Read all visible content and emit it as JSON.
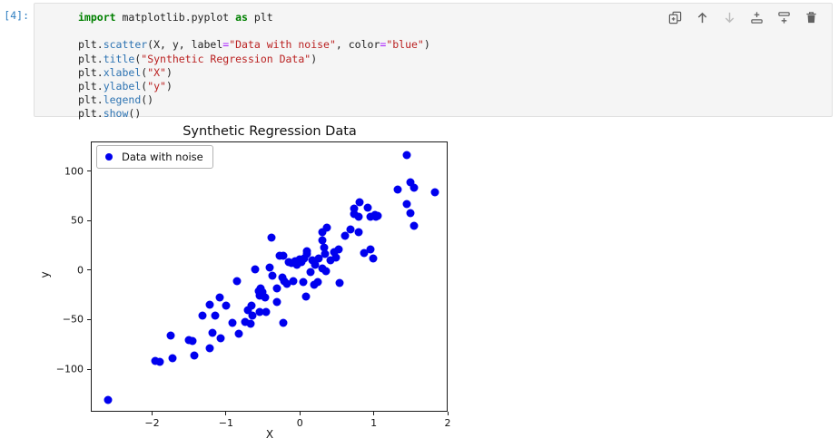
{
  "notebook": {
    "cell": {
      "prompt": "[4]:",
      "code_lines": [
        {
          "tokens": [
            {
              "t": "import",
              "c": "kw"
            },
            {
              "t": " matplotlib.pyplot ",
              "c": "pl"
            },
            {
              "t": "as",
              "c": "kw"
            },
            {
              "t": " plt",
              "c": "pl"
            }
          ]
        },
        {
          "tokens": []
        },
        {
          "tokens": [
            {
              "t": "plt.",
              "c": "pl"
            },
            {
              "t": "scatter",
              "c": "fn"
            },
            {
              "t": "(X, y, label",
              "c": "pl"
            },
            {
              "t": "=",
              "c": "op"
            },
            {
              "t": "\"Data with noise\"",
              "c": "str"
            },
            {
              "t": ", color",
              "c": "pl"
            },
            {
              "t": "=",
              "c": "op"
            },
            {
              "t": "\"blue\"",
              "c": "str"
            },
            {
              "t": ")",
              "c": "pl"
            }
          ]
        },
        {
          "tokens": [
            {
              "t": "plt.",
              "c": "pl"
            },
            {
              "t": "title",
              "c": "fn"
            },
            {
              "t": "(",
              "c": "pl"
            },
            {
              "t": "\"Synthetic Regression Data\"",
              "c": "str"
            },
            {
              "t": ")",
              "c": "pl"
            }
          ]
        },
        {
          "tokens": [
            {
              "t": "plt.",
              "c": "pl"
            },
            {
              "t": "xlabel",
              "c": "fn"
            },
            {
              "t": "(",
              "c": "pl"
            },
            {
              "t": "\"X\"",
              "c": "str"
            },
            {
              "t": ")",
              "c": "pl"
            }
          ]
        },
        {
          "tokens": [
            {
              "t": "plt.",
              "c": "pl"
            },
            {
              "t": "ylabel",
              "c": "fn"
            },
            {
              "t": "(",
              "c": "pl"
            },
            {
              "t": "\"y\"",
              "c": "str"
            },
            {
              "t": ")",
              "c": "pl"
            }
          ]
        },
        {
          "tokens": [
            {
              "t": "plt.",
              "c": "pl"
            },
            {
              "t": "legend",
              "c": "fn"
            },
            {
              "t": "()",
              "c": "pl"
            }
          ]
        },
        {
          "tokens": [
            {
              "t": "plt.",
              "c": "pl"
            },
            {
              "t": "show",
              "c": "fn"
            },
            {
              "t": "()",
              "c": "pl"
            }
          ]
        }
      ],
      "toolbar": [
        {
          "name": "duplicate-cell",
          "icon": "duplicate-icon",
          "disabled": false
        },
        {
          "name": "move-cell-up",
          "icon": "arrow-up-icon",
          "disabled": false
        },
        {
          "name": "move-cell-down",
          "icon": "arrow-down-icon",
          "disabled": true
        },
        {
          "name": "insert-cell-above",
          "icon": "insert-above-icon",
          "disabled": false
        },
        {
          "name": "insert-cell-below",
          "icon": "insert-below-icon",
          "disabled": false
        },
        {
          "name": "delete-cell",
          "icon": "trash-icon",
          "disabled": false
        }
      ]
    }
  },
  "colors": {
    "marker_blue": "#0000ee",
    "prompt_blue": "#307fc1",
    "keyword_green": "#008000",
    "string_red": "#ba2121",
    "operator_purple": "#aa22ff",
    "function_blue": "#2d73b2",
    "icon_grey": "#616161",
    "icon_disabled": "#bdbdbd",
    "cell_bg": "#f5f5f5"
  },
  "chart_data": {
    "type": "scatter",
    "title": "Synthetic Regression Data",
    "xlabel": "X",
    "ylabel": "y",
    "legend": {
      "label": "Data with noise",
      "position": "upper left"
    },
    "marker_color": "#0000ee",
    "grid": false,
    "xlim": [
      -2.83,
      2.0
    ],
    "ylim": [
      -143,
      130
    ],
    "xticks": [
      -2,
      -1,
      0,
      1,
      2
    ],
    "yticks": [
      -100,
      -50,
      0,
      50,
      100
    ],
    "series": [
      {
        "name": "Data with noise",
        "points": [
          [
            -2.6,
            -131
          ],
          [
            -1.96,
            -92
          ],
          [
            -1.9,
            -93
          ],
          [
            -1.75,
            -66
          ],
          [
            -1.73,
            -89
          ],
          [
            -1.5,
            -71
          ],
          [
            -1.45,
            -72
          ],
          [
            -1.43,
            -86
          ],
          [
            -1.32,
            -46
          ],
          [
            -1.22,
            -35
          ],
          [
            -1.22,
            -79
          ],
          [
            -1.18,
            -63
          ],
          [
            -1.15,
            -46
          ],
          [
            -1.08,
            -28
          ],
          [
            -1.07,
            -69
          ],
          [
            -1.0,
            -36
          ],
          [
            -0.91,
            -53
          ],
          [
            -0.85,
            -11
          ],
          [
            -0.83,
            -64
          ],
          [
            -0.74,
            -52
          ],
          [
            -0.7,
            -40
          ],
          [
            -0.67,
            -54
          ],
          [
            -0.66,
            -36
          ],
          [
            -0.64,
            -46
          ],
          [
            -0.6,
            1
          ],
          [
            -0.56,
            -21
          ],
          [
            -0.55,
            -26
          ],
          [
            -0.53,
            -18
          ],
          [
            -0.51,
            -22
          ],
          [
            -0.54,
            -42
          ],
          [
            -0.47,
            -28
          ],
          [
            -0.46,
            -42
          ],
          [
            -0.41,
            3
          ],
          [
            -0.39,
            33
          ],
          [
            -0.37,
            -6
          ],
          [
            -0.31,
            -18
          ],
          [
            -0.31,
            -32
          ],
          [
            -0.27,
            15
          ],
          [
            -0.24,
            -7
          ],
          [
            -0.22,
            15
          ],
          [
            -0.21,
            -11
          ],
          [
            -0.23,
            -53
          ],
          [
            -0.17,
            -14
          ],
          [
            -0.15,
            8
          ],
          [
            -0.11,
            7
          ],
          [
            -0.09,
            -11
          ],
          [
            -0.06,
            9
          ],
          [
            -0.04,
            5
          ],
          [
            0.0,
            11
          ],
          [
            0.02,
            8
          ],
          [
            0.04,
            -12
          ],
          [
            0.06,
            12
          ],
          [
            0.08,
            -27
          ],
          [
            0.09,
            19
          ],
          [
            0.1,
            16
          ],
          [
            0.15,
            -2
          ],
          [
            0.17,
            10
          ],
          [
            0.19,
            -15
          ],
          [
            0.21,
            5
          ],
          [
            0.24,
            -12
          ],
          [
            0.26,
            12
          ],
          [
            0.3,
            30
          ],
          [
            0.31,
            38
          ],
          [
            0.33,
            23
          ],
          [
            0.34,
            16
          ],
          [
            0.3,
            2
          ],
          [
            0.35,
            -1
          ],
          [
            0.37,
            43
          ],
          [
            0.42,
            10
          ],
          [
            0.46,
            18
          ],
          [
            0.49,
            13
          ],
          [
            0.53,
            21
          ],
          [
            0.54,
            -13
          ],
          [
            0.61,
            35
          ],
          [
            0.68,
            41
          ],
          [
            0.73,
            57
          ],
          [
            0.74,
            62
          ],
          [
            0.8,
            38
          ],
          [
            0.79,
            54
          ],
          [
            0.81,
            69
          ],
          [
            0.87,
            17
          ],
          [
            0.92,
            63
          ],
          [
            0.96,
            54
          ],
          [
            1.03,
            54
          ],
          [
            0.95,
            21
          ],
          [
            0.99,
            12
          ],
          [
            1.02,
            56
          ],
          [
            1.05,
            55
          ],
          [
            1.33,
            81
          ],
          [
            1.45,
            116
          ],
          [
            1.45,
            67
          ],
          [
            1.49,
            89
          ],
          [
            1.55,
            83
          ],
          [
            1.5,
            58
          ],
          [
            1.55,
            45
          ],
          [
            1.83,
            79
          ]
        ]
      }
    ]
  }
}
